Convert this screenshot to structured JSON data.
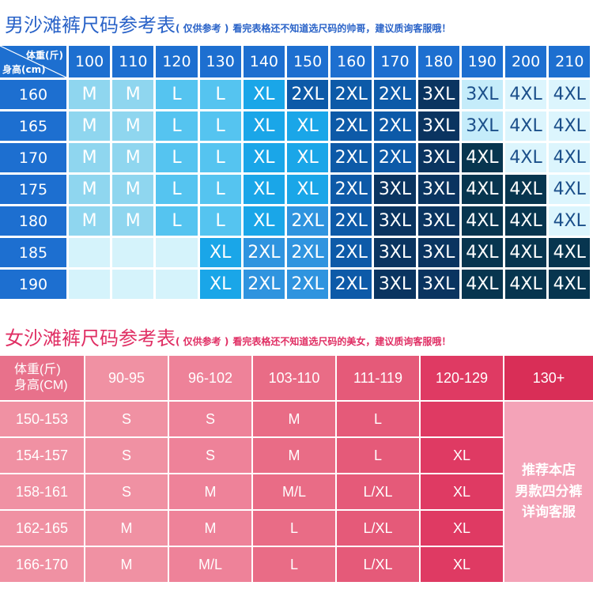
{
  "men": {
    "title": "男沙滩裤尺码参考表",
    "subtitle": "( 仅供参考 )",
    "note": "看完表格还不知道选尺码的帅哥，建议质询客服哦！",
    "corner_weight": "体重(斤)",
    "corner_height": "身高(cm)",
    "weights": [
      "100",
      "110",
      "120",
      "130",
      "140",
      "150",
      "160",
      "170",
      "180",
      "190",
      "200",
      "210"
    ],
    "heights": [
      "160",
      "165",
      "170",
      "175",
      "180",
      "185",
      "190"
    ],
    "rows": [
      [
        "M",
        "M",
        "L",
        "L",
        "XL",
        "2XL",
        "2XL",
        "2XL",
        "3XL",
        "3XL",
        "4XL",
        "4XL"
      ],
      [
        "M",
        "M",
        "L",
        "L",
        "XL",
        "XL",
        "2XL",
        "2XL",
        "3XL",
        "3XL",
        "4XL",
        "4XL"
      ],
      [
        "M",
        "M",
        "L",
        "L",
        "XL",
        "XL",
        "2XL",
        "2XL",
        "3XL",
        "4XL",
        "4XL",
        "4XL"
      ],
      [
        "M",
        "M",
        "L",
        "L",
        "XL",
        "XL",
        "2XL",
        "3XL",
        "3XL",
        "4XL",
        "4XL",
        "4XL"
      ],
      [
        "M",
        "M",
        "L",
        "L",
        "XL",
        "2XL",
        "2XL",
        "3XL",
        "3XL",
        "4XL",
        "4XL",
        "4XL"
      ],
      [
        "",
        "",
        "",
        "XL",
        "2XL",
        "2XL",
        "2XL",
        "3XL",
        "3XL",
        "4XL",
        "4XL",
        "4XL"
      ],
      [
        "",
        "",
        "",
        "XL",
        "2XL",
        "2XL",
        "2XL",
        "3XL",
        "3XL",
        "4XL",
        "4XL",
        "4XL"
      ]
    ],
    "colors": {
      "header": "#1d6fd0",
      "header_alt": "#2d87de",
      "empty": "#d5f3fb",
      "M": "#8fd6ef",
      "L": "#55c4f0",
      "XL": "#1aa6e8",
      "2XL_light": "#2f94df",
      "2XL": "#0d5aa8",
      "3XL": "#0a3460",
      "3XL_light": "#c5ecfa",
      "4XL_light": "#dcf5fd",
      "4XL": "#07354f"
    }
  },
  "women": {
    "title": "女沙滩裤尺码参考表",
    "subtitle": "( 仅供参考 )",
    "note": "看完表格还不知道选尺码的美女，建议质询客服哦！",
    "corner_weight": "体重(斤)",
    "corner_height": "身高(CM)",
    "weights": [
      "90-95",
      "96-102",
      "103-110",
      "111-119",
      "120-129",
      "130+"
    ],
    "heights": [
      "150-153",
      "154-157",
      "158-161",
      "162-165",
      "166-170"
    ],
    "rows": [
      [
        "S",
        "S",
        "M",
        "L",
        ""
      ],
      [
        "S",
        "S",
        "M",
        "L",
        "XL"
      ],
      [
        "S",
        "M",
        "M/L",
        "L/XL",
        "XL"
      ],
      [
        "M",
        "M",
        "L",
        "L/XL",
        "XL"
      ],
      [
        "M",
        "M/L",
        "L",
        "L/XL",
        "XL"
      ]
    ],
    "merged_text": "推荐本店\n男款四分裤\n详询客服",
    "colors": {
      "c0": "#f091a3",
      "c1": "#ee8299",
      "c2": "#e96c86",
      "c3": "#e55a79",
      "c4": "#df3a63",
      "c5": "#d92e57",
      "merged": "#f4a3b8",
      "corner": "#e8718b"
    }
  }
}
